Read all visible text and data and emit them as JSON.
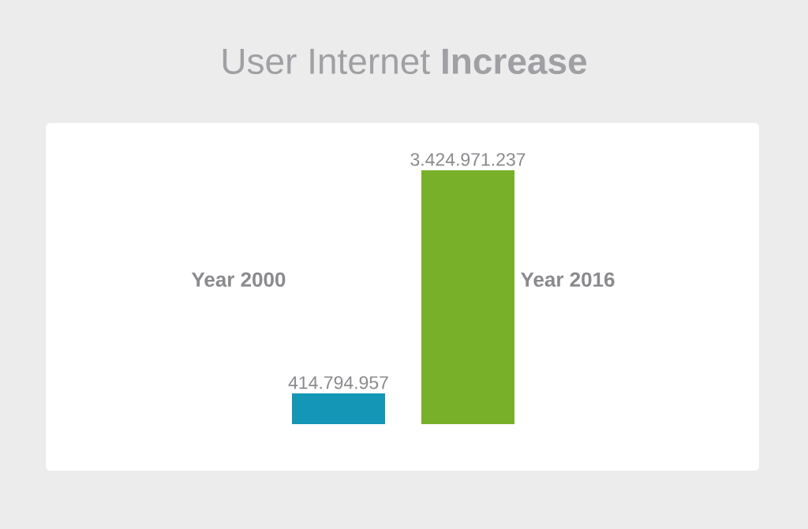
{
  "chart_data": {
    "type": "bar",
    "title": "User Internet **Increase**",
    "categories": [
      "Year 2000",
      "Year 2016"
    ],
    "values": [
      414794957,
      3424971237
    ],
    "value_labels": [
      "414.794.957",
      "3.424.971.237"
    ],
    "colors": [
      "#1496b6",
      "#79b02a"
    ]
  }
}
